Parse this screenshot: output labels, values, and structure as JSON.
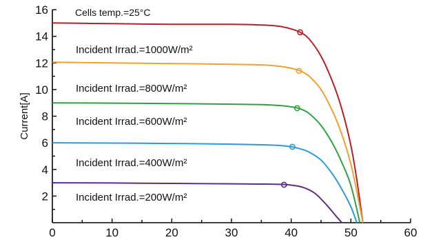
{
  "chart_data": {
    "type": "line",
    "title": "",
    "annotation": "Cells temp.=25°C",
    "xlabel": "",
    "ylabel": "Current[A]",
    "xlim": [
      0,
      60
    ],
    "ylim": [
      0,
      16
    ],
    "xticks": [
      0,
      10,
      20,
      30,
      40,
      50,
      60
    ],
    "yticks": [
      2,
      4,
      6,
      8,
      10,
      12,
      14,
      16
    ],
    "grid": false,
    "series": [
      {
        "name": "Incident Irrad.=1000W/m²",
        "color": "#b5202a",
        "x": [
          0,
          10,
          20,
          30,
          35,
          38,
          40,
          41.5,
          43,
          45,
          47,
          48.5,
          50,
          51,
          52
        ],
        "y": [
          15.0,
          14.95,
          14.9,
          14.9,
          14.85,
          14.75,
          14.55,
          14.3,
          13.8,
          12.5,
          10.5,
          8.5,
          5.8,
          3.2,
          0
        ],
        "mpp": [
          41.5,
          14.3
        ]
      },
      {
        "name": "Incident Irrad.=800W/m²",
        "color": "#f0a030",
        "x": [
          0,
          10,
          20,
          30,
          35,
          38,
          40,
          41.5,
          43,
          45,
          47,
          48.5,
          50,
          51,
          52
        ],
        "y": [
          12.05,
          12.0,
          11.95,
          11.9,
          11.85,
          11.75,
          11.6,
          11.4,
          11.0,
          10.0,
          8.3,
          6.6,
          4.4,
          2.3,
          0
        ],
        "mpp": [
          41.3,
          11.4
        ]
      },
      {
        "name": "Incident Irrad.=600W/m²",
        "color": "#30a040",
        "x": [
          0,
          10,
          20,
          30,
          35,
          38,
          40,
          41.5,
          43,
          45,
          47,
          48.5,
          50,
          51.5
        ],
        "y": [
          9.0,
          8.98,
          8.95,
          8.9,
          8.87,
          8.8,
          8.7,
          8.55,
          8.2,
          7.3,
          5.9,
          4.5,
          2.8,
          0
        ],
        "mpp": [
          41.0,
          8.6
        ]
      },
      {
        "name": "Incident Irrad.=400W/m²",
        "color": "#2b9ad8",
        "x": [
          0,
          10,
          20,
          30,
          35,
          38,
          40,
          41.5,
          43,
          45,
          47,
          48.5,
          50,
          51
        ],
        "y": [
          6.0,
          5.98,
          5.95,
          5.9,
          5.85,
          5.8,
          5.7,
          5.55,
          5.3,
          4.7,
          3.6,
          2.5,
          1.2,
          0
        ],
        "mpp": [
          40.2,
          5.7
        ]
      },
      {
        "name": "Incident Irrad.=200W/m²",
        "color": "#5b2c8c",
        "x": [
          0,
          10,
          20,
          30,
          35,
          38,
          40,
          42,
          44,
          46,
          47.5,
          48.5
        ],
        "y": [
          3.0,
          2.98,
          2.95,
          2.92,
          2.9,
          2.88,
          2.82,
          2.65,
          2.2,
          1.3,
          0.5,
          0
        ],
        "mpp": [
          38.8,
          2.85
        ]
      }
    ]
  }
}
